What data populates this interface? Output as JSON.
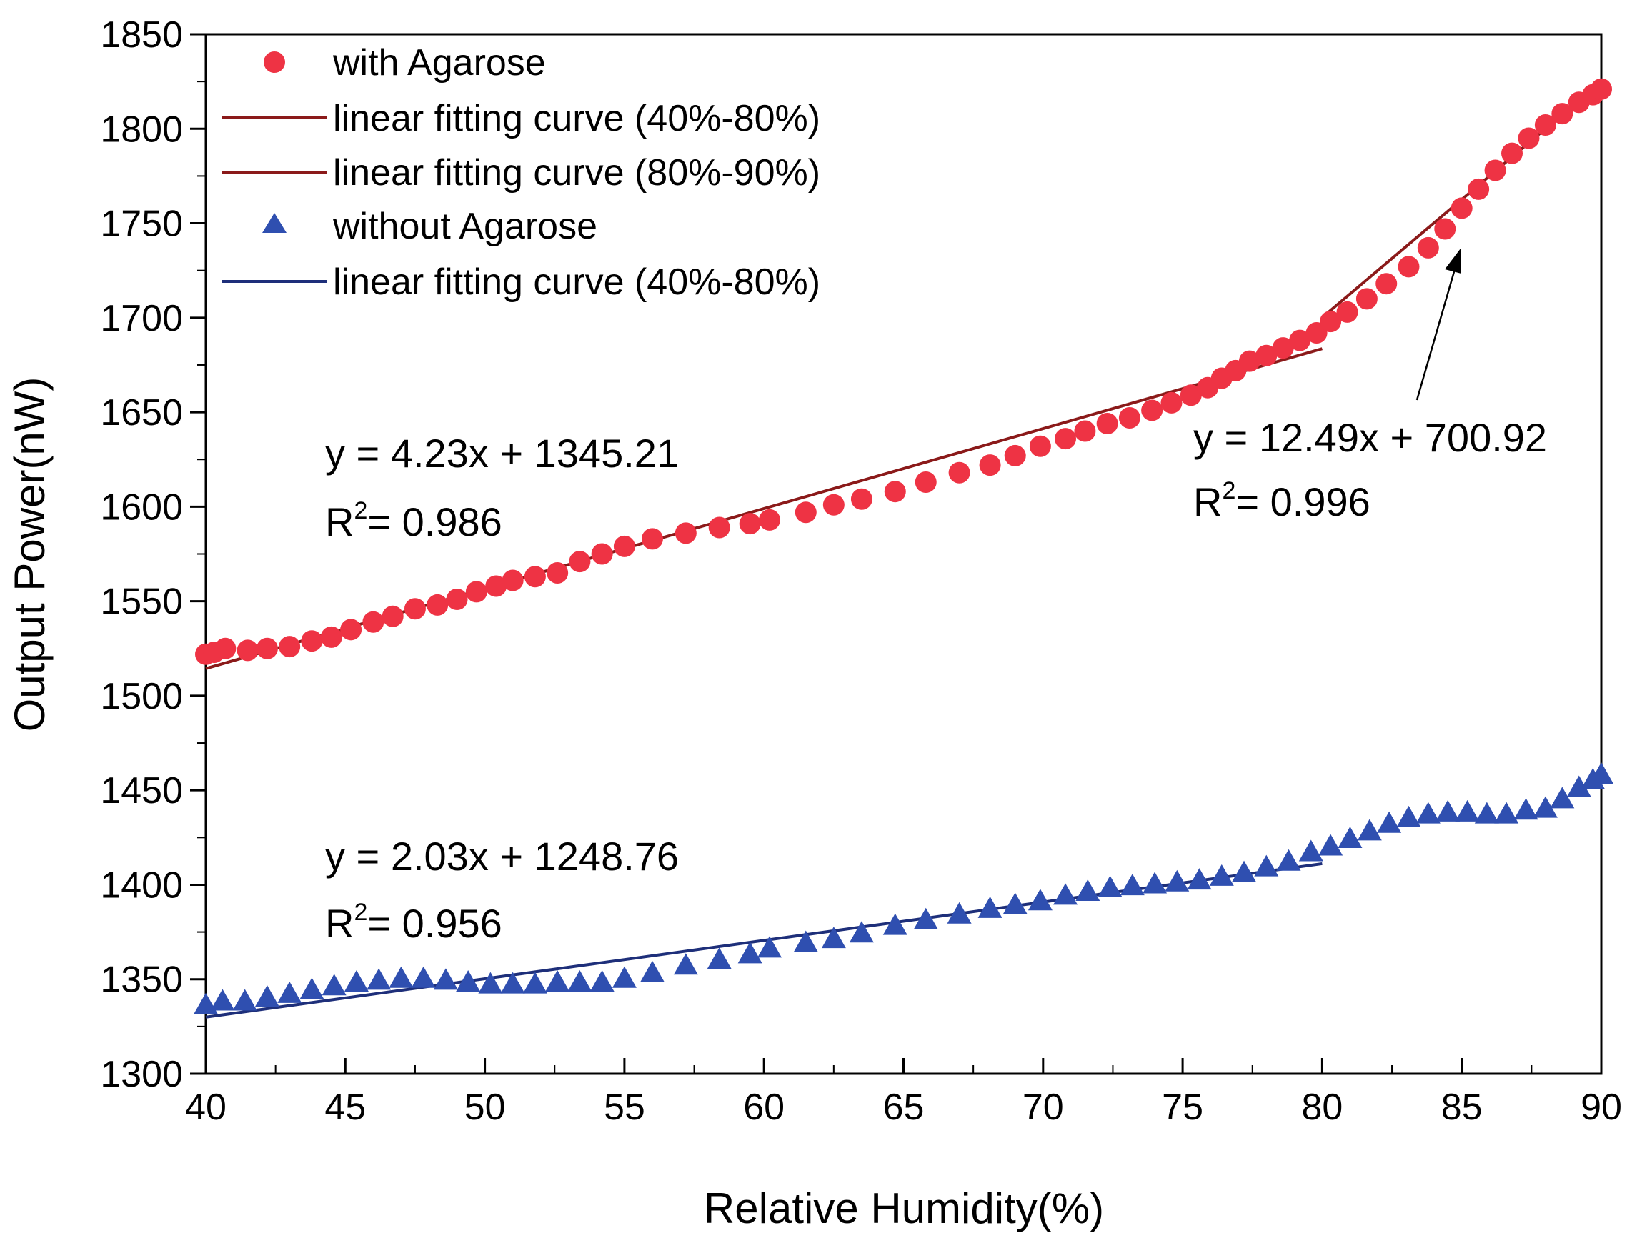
{
  "chart_data": {
    "type": "scatter",
    "title": "",
    "xlabel": "Relative Humidity(%)",
    "ylabel": "Output Power(nW)",
    "xlim": [
      40,
      90
    ],
    "ylim": [
      1300,
      1850
    ],
    "xticks": [
      40,
      45,
      50,
      55,
      60,
      65,
      70,
      75,
      80,
      85,
      90
    ],
    "yticks": [
      1300,
      1350,
      1400,
      1450,
      1500,
      1550,
      1600,
      1650,
      1700,
      1750,
      1800,
      1850
    ],
    "x_tick_labels": [
      "40",
      "45",
      "50",
      "55",
      "60",
      "65",
      "70",
      "75",
      "80",
      "85",
      "90"
    ],
    "y_tick_labels": [
      "1300",
      "1350",
      "1400",
      "1450",
      "1500",
      "1550",
      "1600",
      "1650",
      "1700",
      "1750",
      "1800",
      "1850"
    ],
    "legend_position": "top-left",
    "colors": {
      "with_agarose": "#ee3344",
      "fit_red": "#8b1a1a",
      "without_agarose": "#2f4fb0",
      "fit_blue": "#1e2f7a"
    },
    "legend": [
      {
        "label": "with Agarose",
        "marker": "circle",
        "color": "#ee3344"
      },
      {
        "label": "linear fitting curve (40%-80%)",
        "marker": "line",
        "color": "#8b1a1a"
      },
      {
        "label": "linear fitting curve (80%-90%)",
        "marker": "line",
        "color": "#8b1a1a"
      },
      {
        "label": "without Agarose",
        "marker": "triangle",
        "color": "#2f4fb0"
      },
      {
        "label": "linear fitting curve (40%-80%)",
        "marker": "line",
        "color": "#1e2f7a"
      }
    ],
    "series": [
      {
        "name": "with Agarose",
        "marker": "circle",
        "color": "#ee3344",
        "points": [
          [
            40.0,
            1522
          ],
          [
            40.3,
            1523
          ],
          [
            40.7,
            1525
          ],
          [
            41.5,
            1524
          ],
          [
            42.2,
            1525
          ],
          [
            43.0,
            1526
          ],
          [
            43.8,
            1529
          ],
          [
            44.5,
            1531
          ],
          [
            45.2,
            1535
          ],
          [
            46.0,
            1539
          ],
          [
            46.7,
            1542
          ],
          [
            47.5,
            1546
          ],
          [
            48.3,
            1548
          ],
          [
            49.0,
            1551
          ],
          [
            49.7,
            1555
          ],
          [
            50.4,
            1558
          ],
          [
            51.0,
            1561
          ],
          [
            51.8,
            1563
          ],
          [
            52.6,
            1565
          ],
          [
            53.4,
            1571
          ],
          [
            54.2,
            1575
          ],
          [
            55.0,
            1579
          ],
          [
            56.0,
            1583
          ],
          [
            57.2,
            1586
          ],
          [
            58.4,
            1589
          ],
          [
            59.5,
            1591
          ],
          [
            60.2,
            1593
          ],
          [
            61.5,
            1597
          ],
          [
            62.5,
            1601
          ],
          [
            63.5,
            1604
          ],
          [
            64.7,
            1608
          ],
          [
            65.8,
            1613
          ],
          [
            67.0,
            1618
          ],
          [
            68.1,
            1622
          ],
          [
            69.0,
            1627
          ],
          [
            69.9,
            1632
          ],
          [
            70.8,
            1636
          ],
          [
            71.5,
            1640
          ],
          [
            72.3,
            1644
          ],
          [
            73.1,
            1647
          ],
          [
            73.9,
            1651
          ],
          [
            74.6,
            1655
          ],
          [
            75.3,
            1659
          ],
          [
            75.9,
            1663
          ],
          [
            76.4,
            1668
          ],
          [
            76.9,
            1672
          ],
          [
            77.4,
            1677
          ],
          [
            78.0,
            1680
          ],
          [
            78.6,
            1684
          ],
          [
            79.2,
            1688
          ],
          [
            79.8,
            1692
          ],
          [
            80.3,
            1698
          ],
          [
            80.9,
            1703
          ],
          [
            81.6,
            1710
          ],
          [
            82.3,
            1718
          ],
          [
            83.1,
            1727
          ],
          [
            83.8,
            1737
          ],
          [
            84.4,
            1747
          ],
          [
            85.0,
            1758
          ],
          [
            85.6,
            1768
          ],
          [
            86.2,
            1778
          ],
          [
            86.8,
            1787
          ],
          [
            87.4,
            1795
          ],
          [
            88.0,
            1802
          ],
          [
            88.6,
            1808
          ],
          [
            89.2,
            1814
          ],
          [
            89.7,
            1818
          ],
          [
            90.0,
            1821
          ]
        ]
      },
      {
        "name": "without Agarose",
        "marker": "triangle",
        "color": "#2f4fb0",
        "points": [
          [
            40.0,
            1336
          ],
          [
            40.6,
            1338
          ],
          [
            41.4,
            1338
          ],
          [
            42.2,
            1340
          ],
          [
            43.0,
            1342
          ],
          [
            43.8,
            1344
          ],
          [
            44.6,
            1346
          ],
          [
            45.4,
            1348
          ],
          [
            46.2,
            1349
          ],
          [
            47.0,
            1350
          ],
          [
            47.8,
            1350
          ],
          [
            48.6,
            1349
          ],
          [
            49.4,
            1348
          ],
          [
            50.2,
            1347
          ],
          [
            51.0,
            1347
          ],
          [
            51.8,
            1347
          ],
          [
            52.6,
            1348
          ],
          [
            53.4,
            1348
          ],
          [
            54.2,
            1348
          ],
          [
            55.0,
            1350
          ],
          [
            56.0,
            1353
          ],
          [
            57.2,
            1357
          ],
          [
            58.4,
            1360
          ],
          [
            59.5,
            1363
          ],
          [
            60.2,
            1366
          ],
          [
            61.5,
            1369
          ],
          [
            62.5,
            1371
          ],
          [
            63.5,
            1374
          ],
          [
            64.7,
            1378
          ],
          [
            65.8,
            1381
          ],
          [
            67.0,
            1384
          ],
          [
            68.1,
            1387
          ],
          [
            69.0,
            1389
          ],
          [
            69.9,
            1391
          ],
          [
            70.8,
            1394
          ],
          [
            71.6,
            1396
          ],
          [
            72.4,
            1398
          ],
          [
            73.2,
            1399
          ],
          [
            74.0,
            1400
          ],
          [
            74.8,
            1401
          ],
          [
            75.6,
            1402
          ],
          [
            76.4,
            1404
          ],
          [
            77.2,
            1406
          ],
          [
            78.0,
            1409
          ],
          [
            78.8,
            1412
          ],
          [
            79.6,
            1417
          ],
          [
            80.3,
            1420
          ],
          [
            81.0,
            1424
          ],
          [
            81.7,
            1428
          ],
          [
            82.4,
            1432
          ],
          [
            83.1,
            1435
          ],
          [
            83.8,
            1437
          ],
          [
            84.5,
            1438
          ],
          [
            85.2,
            1438
          ],
          [
            85.9,
            1437
          ],
          [
            86.6,
            1437
          ],
          [
            87.3,
            1439
          ],
          [
            88.0,
            1440
          ],
          [
            88.6,
            1445
          ],
          [
            89.2,
            1451
          ],
          [
            89.7,
            1455
          ],
          [
            90.0,
            1458
          ]
        ]
      }
    ],
    "fits": [
      {
        "name": "linear fitting curve (40%-80%)",
        "color": "#8b1a1a",
        "slope": 4.23,
        "intercept": 1345.21,
        "x_range": [
          40,
          80
        ]
      },
      {
        "name": "linear fitting curve (80%-90%)",
        "color": "#8b1a1a",
        "slope": 12.49,
        "intercept": 700.92,
        "x_range": [
          80,
          90
        ]
      },
      {
        "name": "linear fitting curve (40%-80%)",
        "color": "#1e2f7a",
        "slope": 2.03,
        "intercept": 1248.76,
        "x_range": [
          40,
          80
        ]
      }
    ],
    "annotations": [
      {
        "equation": "y = 4.23x + 1345.21",
        "r2_prefix": "R",
        "r2_exp": "2",
        "r2_value": "= 0.986"
      },
      {
        "equation": "y = 12.49x + 700.92",
        "r2_prefix": "R",
        "r2_exp": "2",
        "r2_value": "= 0.996"
      },
      {
        "equation": "y = 2.03x + 1248.76",
        "r2_prefix": "R",
        "r2_exp": "2",
        "r2_value": "= 0.956"
      }
    ]
  }
}
